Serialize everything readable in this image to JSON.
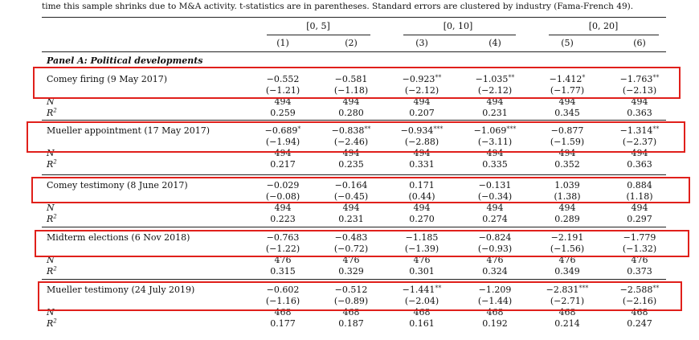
{
  "caption": "time this sample shrinks due to M&A activity. t-statistics are in parentheses. Standard errors are clustered by industry (Fama-French 49).",
  "windows": [
    "[0, 5]",
    "[0, 10]",
    "[0, 20]"
  ],
  "columns": [
    "(1)",
    "(2)",
    "(3)",
    "(4)",
    "(5)",
    "(6)"
  ],
  "panel_title": "Panel A: Political developments",
  "stat_labels": {
    "n": "N",
    "r2": "R",
    "r2_sup": "2"
  },
  "events": [
    {
      "label": "Comey firing (9 May 2017)",
      "coef": [
        "−0.552",
        "−0.581",
        "−0.923",
        "−1.035",
        "−1.412",
        "−1.763"
      ],
      "stars": [
        "",
        "",
        "**",
        "**",
        "*",
        "**"
      ],
      "tstat": [
        "(−1.21)",
        "(−1.18)",
        "(−2.12)",
        "(−2.12)",
        "(−1.77)",
        "(−2.13)"
      ],
      "n": [
        "494",
        "494",
        "494",
        "494",
        "494",
        "494"
      ],
      "r2": [
        "0.259",
        "0.280",
        "0.207",
        "0.231",
        "0.345",
        "0.363"
      ]
    },
    {
      "label": "Mueller appointment (17 May 2017)",
      "coef": [
        "−0.689",
        "−0.838",
        "−0.934",
        "−1.069",
        "−0.877",
        "−1.314"
      ],
      "stars": [
        "*",
        "**",
        "***",
        "***",
        "",
        "**"
      ],
      "tstat": [
        "(−1.94)",
        "(−2.46)",
        "(−2.88)",
        "(−3.11)",
        "(−1.59)",
        "(−2.37)"
      ],
      "n": [
        "494",
        "494",
        "494",
        "494",
        "494",
        "494"
      ],
      "r2": [
        "0.217",
        "0.235",
        "0.331",
        "0.335",
        "0.352",
        "0.363"
      ]
    },
    {
      "label": "Comey testimony (8 June 2017)",
      "coef": [
        "−0.029",
        "−0.164",
        "0.171",
        "−0.131",
        "1.039",
        "0.884"
      ],
      "stars": [
        "",
        "",
        "",
        "",
        "",
        ""
      ],
      "tstat": [
        "(−0.08)",
        "(−0.45)",
        "(0.44)",
        "(−0.34)",
        "(1.38)",
        "(1.18)"
      ],
      "n": [
        "494",
        "494",
        "494",
        "494",
        "494",
        "494"
      ],
      "r2": [
        "0.223",
        "0.231",
        "0.270",
        "0.274",
        "0.289",
        "0.297"
      ]
    },
    {
      "label": "Midterm elections (6 Nov 2018)",
      "coef": [
        "−0.763",
        "−0.483",
        "−1.185",
        "−0.824",
        "−2.191",
        "−1.779"
      ],
      "stars": [
        "",
        "",
        "",
        "",
        "",
        ""
      ],
      "tstat": [
        "(−1.22)",
        "(−0.72)",
        "(−1.39)",
        "(−0.93)",
        "(−1.56)",
        "(−1.32)"
      ],
      "n": [
        "476",
        "476",
        "476",
        "476",
        "476",
        "476"
      ],
      "r2": [
        "0.315",
        "0.329",
        "0.301",
        "0.324",
        "0.349",
        "0.373"
      ]
    },
    {
      "label": "Mueller testimony (24 July 2019)",
      "coef": [
        "−0.602",
        "−0.512",
        "−1.441",
        "−1.209",
        "−2.831",
        "−2.588"
      ],
      "stars": [
        "",
        "",
        "**",
        "",
        "***",
        "**"
      ],
      "tstat": [
        "(−1.16)",
        "(−0.89)",
        "(−2.04)",
        "(−1.44)",
        "(−2.71)",
        "(−2.16)"
      ],
      "n": [
        "468",
        "468",
        "468",
        "468",
        "468",
        "468"
      ],
      "r2": [
        "0.177",
        "0.187",
        "0.161",
        "0.192",
        "0.214",
        "0.247"
      ]
    }
  ],
  "highlight_color": "#e0201b"
}
